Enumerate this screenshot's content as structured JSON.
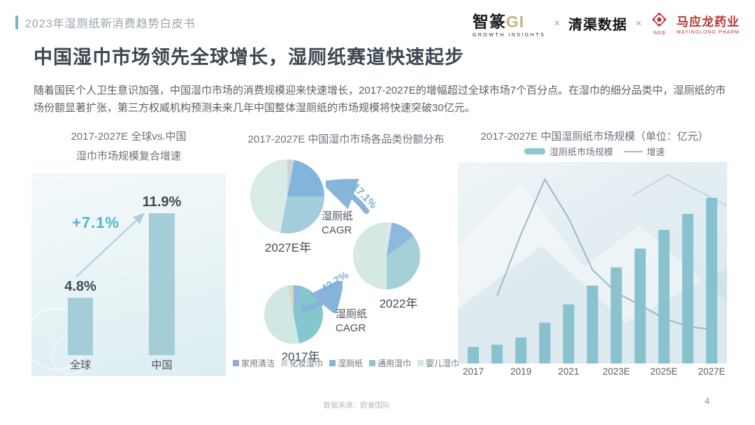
{
  "header": {
    "breadcrumb": "2023年湿厕纸新消费趋势白皮书",
    "partners": {
      "zhizhuan_cn": "智篆",
      "zhizhuan_gi": "GI",
      "zhizhuan_sub": "GROWTH INSIGHTS",
      "cross1": "×",
      "cross2": "×",
      "qingqu": "清渠数据",
      "mayinglong_seal": "马应龙",
      "mayinglong_cn": "马应龙药业",
      "mayinglong_en": "MAYINGLONG PHARM"
    }
  },
  "title": "中国湿巾市场领先全球增长，湿厕纸赛道快速起步",
  "paragraph": "随着国民个人卫生意识加强，中国湿巾市场的消费规模迎来快速增长，2017-2027E的增幅超过全球市场7个百分点。在湿巾的细分品类中，湿厕纸的市场份额显著扩张，第三方权威机构预测未来几年中国整体湿厕纸的市场规模将快速突破30亿元。",
  "footer": {
    "source": "数据来源：欧睿国际",
    "page": "4"
  },
  "colors": {
    "accent_teal": "#4fb6c6",
    "left_bar": "#a4cdd8",
    "right_bar": "#7cbcca",
    "growth_line": "#9db8c8",
    "arrow_blue": "#87b5da",
    "brand_red": "#b6372f"
  },
  "chart_data": [
    {
      "id": "global-vs-china-cagr",
      "type": "bar",
      "title_line1": "2017-2027E 全球vs.中国",
      "title_line2": "湿巾市场规模复合增速",
      "categories": [
        "全球",
        "中国"
      ],
      "values": [
        4.8,
        11.9
      ],
      "value_labels": [
        "4.8%",
        "11.9%"
      ],
      "annotation": "+7.1%",
      "unit": "%"
    },
    {
      "id": "wipes-category-share",
      "type": "pie",
      "title": "2017-2027E 中国湿巾市场各品类份额分布",
      "legend": [
        {
          "label": "家用清洁",
          "color": "#93a9c9"
        },
        {
          "label": "化妆湿巾",
          "color": "#d6d9d2"
        },
        {
          "label": "湿厕纸",
          "color": "#82b4dc"
        },
        {
          "label": "通用湿巾",
          "color": "#8cc6cf"
        },
        {
          "label": "婴儿湿巾",
          "color": "#d3e6e4"
        }
      ],
      "pies": [
        {
          "label": "2027E年",
          "slices": [
            {
              "name": "化妆湿巾",
              "pct": 3,
              "color": "#ccd4d9"
            },
            {
              "name": "湿厕纸",
              "pct": 22,
              "color": "#82b4dc"
            },
            {
              "name": "通用湿巾",
              "pct": 28,
              "color": "#a3cdda"
            },
            {
              "name": "婴儿湿巾",
              "pct": 47,
              "color": "#d8ebe7"
            }
          ]
        },
        {
          "label": "2022年",
          "slices": [
            {
              "name": "化妆湿巾",
              "pct": 2.5,
              "color": "#e2e6e5"
            },
            {
              "name": "湿厕纸",
              "pct": 12.5,
              "color": "#8cb9e0"
            },
            {
              "name": "通用湿巾",
              "pct": 35,
              "color": "#a5d0d8"
            },
            {
              "name": "婴儿湿巾",
              "pct": 50,
              "color": "#d3e9e2"
            }
          ]
        },
        {
          "label": "2017年",
          "slices": [
            {
              "name": "湿厕纸",
              "pct": 4,
              "color": "#8cb9e0"
            },
            {
              "name": "通用湿巾",
              "pct": 43,
              "color": "#86c6cf"
            },
            {
              "name": "婴儿湿巾",
              "pct": 50,
              "color": "#cfe8e3"
            },
            {
              "name": "化妆湿巾",
              "pct": 3,
              "color": "#ded5c0"
            }
          ]
        }
      ],
      "annotations": [
        {
          "pct": "17.1%",
          "label_line1": "湿厕纸",
          "label_line2": "CAGR",
          "meaning": "湿厕纸CAGR 2022-2027E"
        },
        {
          "pct": "42.7%",
          "label_line1": "湿厕纸",
          "label_line2": "CAGR",
          "meaning": "湿厕纸CAGR 2017-2022"
        }
      ]
    },
    {
      "id": "wet-toilet-paper-market-size",
      "type": "bar+line",
      "title": "2017-2027E 中国湿厕纸市场规模（单位：亿元）",
      "legend_bar_label": "湿厕纸市场规模",
      "legend_line_label": "增速",
      "categories": [
        "2017",
        "2018",
        "2019",
        "2020",
        "2021",
        "2022",
        "2023E",
        "2024E",
        "2025E",
        "2026E",
        "2027E"
      ],
      "x_tick_labels": [
        "2017",
        "2019",
        "2021",
        "2023E",
        "2025E",
        "2027E"
      ],
      "bars_yiyuan_estimated": [
        3.0,
        3.4,
        4.7,
        7.4,
        10.7,
        14.1,
        17.4,
        20.8,
        24.2,
        27.1,
        30.0
      ],
      "growth_pct_estimated": [
        21,
        40,
        57,
        45,
        29,
        22,
        18,
        14,
        11.5,
        10.5
      ],
      "growth_line_starts_at": "2018",
      "ylim": [
        0,
        32
      ]
    }
  ]
}
